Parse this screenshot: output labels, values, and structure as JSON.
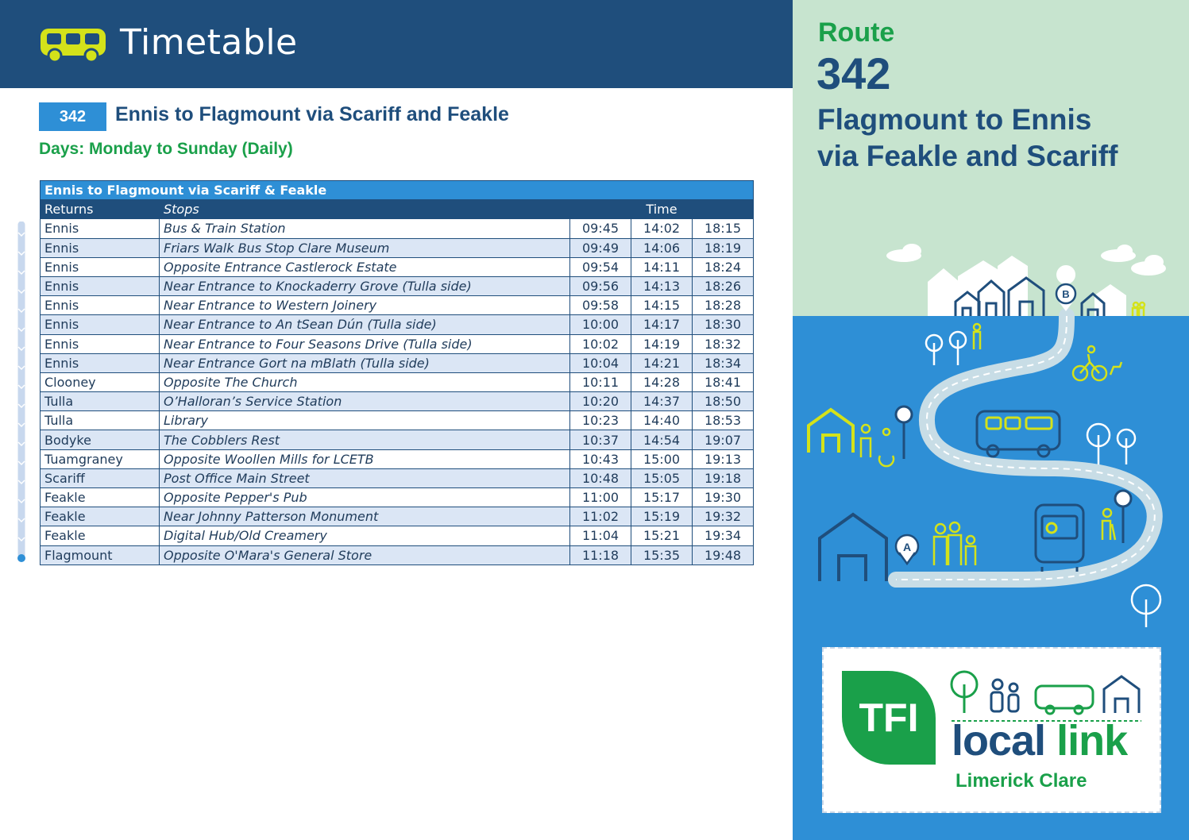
{
  "header": {
    "title": "Timetable",
    "icon": "bus-icon"
  },
  "route": {
    "number": "342",
    "heading": "Ennis to Flagmount via Scariff and Feakle",
    "days": "Days: Monday to Sunday (Daily)"
  },
  "table": {
    "title": "Ennis to Flagmount via Scariff & Feakle",
    "headers": {
      "returns": "Returns",
      "stops": "Stops",
      "time": "Time"
    },
    "rows": [
      {
        "town": "Ennis",
        "stop": "Bus & Train Station",
        "times": [
          "09:45",
          "14:02",
          "18:15"
        ]
      },
      {
        "town": "Ennis",
        "stop": "Friars Walk Bus Stop Clare Museum",
        "times": [
          "09:49",
          "14:06",
          "18:19"
        ]
      },
      {
        "town": "Ennis",
        "stop": "Opposite Entrance Castlerock Estate",
        "times": [
          "09:54",
          "14:11",
          "18:24"
        ]
      },
      {
        "town": "Ennis",
        "stop": "Near Entrance to Knockaderry Grove (Tulla side)",
        "times": [
          "09:56",
          "14:13",
          "18:26"
        ]
      },
      {
        "town": "Ennis",
        "stop": "Near Entrance to Western Joinery",
        "times": [
          "09:58",
          "14:15",
          "18:28"
        ]
      },
      {
        "town": "Ennis",
        "stop": "Near Entrance to An tSean Dún (Tulla side)",
        "times": [
          "10:00",
          "14:17",
          "18:30"
        ]
      },
      {
        "town": "Ennis",
        "stop": "Near Entrance to Four Seasons Drive (Tulla side)",
        "times": [
          "10:02",
          "14:19",
          "18:32"
        ]
      },
      {
        "town": "Ennis",
        "stop": "Near Entrance Gort na mBlath (Tulla side)",
        "times": [
          "10:04",
          "14:21",
          "18:34"
        ]
      },
      {
        "town": "Clooney",
        "stop": "Opposite The Church",
        "times": [
          "10:11",
          "14:28",
          "18:41"
        ]
      },
      {
        "town": "Tulla",
        "stop": "O’Halloran’s Service Station",
        "times": [
          "10:20",
          "14:37",
          "18:50"
        ]
      },
      {
        "town": "Tulla",
        "stop": "Library",
        "times": [
          "10:23",
          "14:40",
          "18:53"
        ]
      },
      {
        "town": "Bodyke",
        "stop": "The Cobblers Rest",
        "times": [
          "10:37",
          "14:54",
          "19:07"
        ]
      },
      {
        "town": "Tuamgraney",
        "stop": "Opposite Woollen Mills for LCETB",
        "times": [
          "10:43",
          "15:00",
          "19:13"
        ]
      },
      {
        "town": "Scariff",
        "stop": "Post Office Main Street",
        "times": [
          "10:48",
          "15:05",
          "19:18"
        ]
      },
      {
        "town": "Feakle",
        "stop": "Opposite Pepper's Pub",
        "times": [
          "11:00",
          "15:17",
          "19:30"
        ]
      },
      {
        "town": "Feakle",
        "stop": "Near Johnny Patterson Monument",
        "times": [
          "11:02",
          "15:19",
          "19:32"
        ]
      },
      {
        "town": "Feakle",
        "stop": "Digital Hub/Old Creamery",
        "times": [
          "11:04",
          "15:21",
          "19:34"
        ]
      },
      {
        "town": "Flagmount",
        "stop": "Opposite O'Mara's General Store",
        "times": [
          "11:18",
          "15:35",
          "19:48"
        ]
      }
    ]
  },
  "side_panel": {
    "route_label": "Route",
    "route_number": "342",
    "direction_line1": "Flagmount to Ennis",
    "direction_line2": "via Feakle and Scariff",
    "marker_a": "A",
    "marker_b": "B"
  },
  "logo": {
    "tfi": "TFI",
    "local": "local",
    "link": "link",
    "region": "Limerick Clare"
  },
  "colors": {
    "navy": "#1f4e7c",
    "blue": "#2e8fd6",
    "green": "#1aa04a",
    "mint": "#c7e4cf",
    "lime": "#d4e21a",
    "row_alt": "#dbe6f5"
  }
}
